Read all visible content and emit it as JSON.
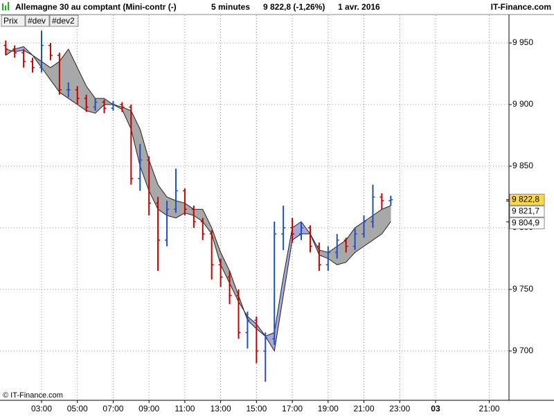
{
  "header": {
    "title": "Allemagne 30 au comptant (Mini-contr (-)",
    "period": "5 minutes",
    "last": "9 822,8 (-1,26%)",
    "date": "1 avr. 2016",
    "brand": "IT-Finance.com"
  },
  "buttons": [
    "Prix",
    "#dev",
    "#dev2"
  ],
  "footer": "© IT-Finance.com",
  "chart_data": {
    "type": "ohlc",
    "x": [
      1,
      1.5,
      2,
      2.5,
      3,
      3.5,
      4,
      4.5,
      5,
      5.5,
      6,
      6.5,
      7,
      7.5,
      8,
      8.5,
      9,
      9.5,
      10,
      10.5,
      11,
      11.5,
      12,
      12.5,
      13,
      13.5,
      14,
      14.5,
      15,
      15.5,
      16,
      16.5,
      17,
      17.5,
      18,
      18.5,
      19,
      19.5,
      20,
      20.5,
      21,
      21.5,
      22,
      22.5
    ],
    "open": [
      9948,
      9945,
      9942,
      9935,
      9930,
      9948,
      9940,
      9912,
      9912,
      9905,
      9898,
      9902,
      9897,
      9900,
      9898,
      9840,
      9855,
      9820,
      9790,
      9815,
      9830,
      9815,
      9805,
      9795,
      9770,
      9760,
      9745,
      9715,
      9725,
      9700,
      9710,
      9795,
      9800,
      9795,
      9800,
      9785,
      9770,
      9780,
      9790,
      9785,
      9795,
      9805,
      9825,
      9822
    ],
    "high": [
      9952,
      9948,
      9945,
      9938,
      9960,
      9950,
      9942,
      9918,
      9915,
      9908,
      9905,
      9904,
      9903,
      9902,
      9900,
      9868,
      9858,
      9825,
      9822,
      9848,
      9832,
      9818,
      9808,
      9798,
      9775,
      9765,
      9750,
      9732,
      9728,
      9715,
      9805,
      9818,
      9808,
      9805,
      9802,
      9788,
      9785,
      9795,
      9792,
      9800,
      9810,
      9835,
      9828,
      9826
    ],
    "low": [
      9940,
      9938,
      9930,
      9926,
      9926,
      9936,
      9908,
      9906,
      9900,
      9894,
      9895,
      9893,
      9895,
      9894,
      9835,
      9830,
      9810,
      9765,
      9785,
      9812,
      9810,
      9800,
      9790,
      9758,
      9752,
      9738,
      9710,
      9702,
      9690,
      9675,
      9705,
      9782,
      9788,
      9790,
      9780,
      9765,
      9765,
      9775,
      9780,
      9782,
      9792,
      9800,
      9815,
      9818
    ],
    "close": [
      9945,
      9942,
      9935,
      9930,
      9948,
      9940,
      9912,
      9912,
      9905,
      9898,
      9902,
      9897,
      9900,
      9898,
      9840,
      9855,
      9820,
      9790,
      9815,
      9830,
      9815,
      9805,
      9795,
      9770,
      9760,
      9745,
      9715,
      9725,
      9700,
      9710,
      9795,
      9800,
      9795,
      9800,
      9785,
      9770,
      9780,
      9790,
      9785,
      9795,
      9805,
      9825,
      9822,
      9822.8
    ],
    "up_color": "#1f4fbf",
    "down_color": "#c00000",
    "cloud": {
      "a": [
        9945,
        9943,
        9944,
        9940,
        9935,
        9930,
        9935,
        9945,
        9930,
        9915,
        9905,
        9905,
        9900,
        9898,
        9895,
        9880,
        9855,
        9835,
        9825,
        9822,
        9820,
        9815,
        9815,
        9800,
        9780,
        9765,
        9745,
        9725,
        9718,
        9712,
        9700,
        9745,
        9790,
        9795,
        9795,
        9782,
        9780,
        9785,
        9790,
        9800,
        9805,
        9810,
        9815,
        9818
      ],
      "b": [
        9940,
        9945,
        9947,
        9940,
        9930,
        9920,
        9910,
        9905,
        9900,
        9895,
        9893,
        9900,
        9900,
        9896,
        9880,
        9850,
        9830,
        9815,
        9810,
        9808,
        9812,
        9810,
        9805,
        9795,
        9770,
        9755,
        9740,
        9728,
        9722,
        9712,
        9715,
        9760,
        9800,
        9805,
        9795,
        9778,
        9775,
        9770,
        9772,
        9780,
        9785,
        9790,
        9795,
        9805
      ],
      "a_color": "#a8a8a8",
      "b_color": "#a8a8d8"
    },
    "markers": [
      {
        "value": 9822.8,
        "label": "9 822,8",
        "color": "#ffd84a"
      },
      {
        "value": 9821.7,
        "label": "9 821,7",
        "color": "#ffffff"
      },
      {
        "value": 9804.9,
        "label": "9 804,9",
        "color": "#ffffff"
      }
    ],
    "xlim": [
      0.68,
      29.1
    ],
    "ylim": [
      9660,
      9972.5
    ],
    "xticks": [
      {
        "value": 3,
        "label": "03:00"
      },
      {
        "value": 5,
        "label": "05:00"
      },
      {
        "value": 7,
        "label": "07:00"
      },
      {
        "value": 9,
        "label": "09:00"
      },
      {
        "value": 11,
        "label": "11:00"
      },
      {
        "value": 13,
        "label": "13:00"
      },
      {
        "value": 15,
        "label": "15:00"
      },
      {
        "value": 17,
        "label": "17:00"
      },
      {
        "value": 19,
        "label": "19:00"
      },
      {
        "value": 21,
        "label": "21:00"
      },
      {
        "value": 23,
        "label": "23:00"
      },
      {
        "value": 25,
        "label": "03"
      },
      {
        "value": 28,
        "label": "21:00"
      }
    ],
    "yticks": [
      {
        "value": 9700,
        "label": "9 700"
      },
      {
        "value": 9750,
        "label": "9 750"
      },
      {
        "value": 9800,
        "label": "9 800"
      },
      {
        "value": 9850,
        "label": "9 850"
      },
      {
        "value": 9900,
        "label": "9 900"
      },
      {
        "value": 9950,
        "label": "9 950"
      }
    ],
    "grid": true
  }
}
